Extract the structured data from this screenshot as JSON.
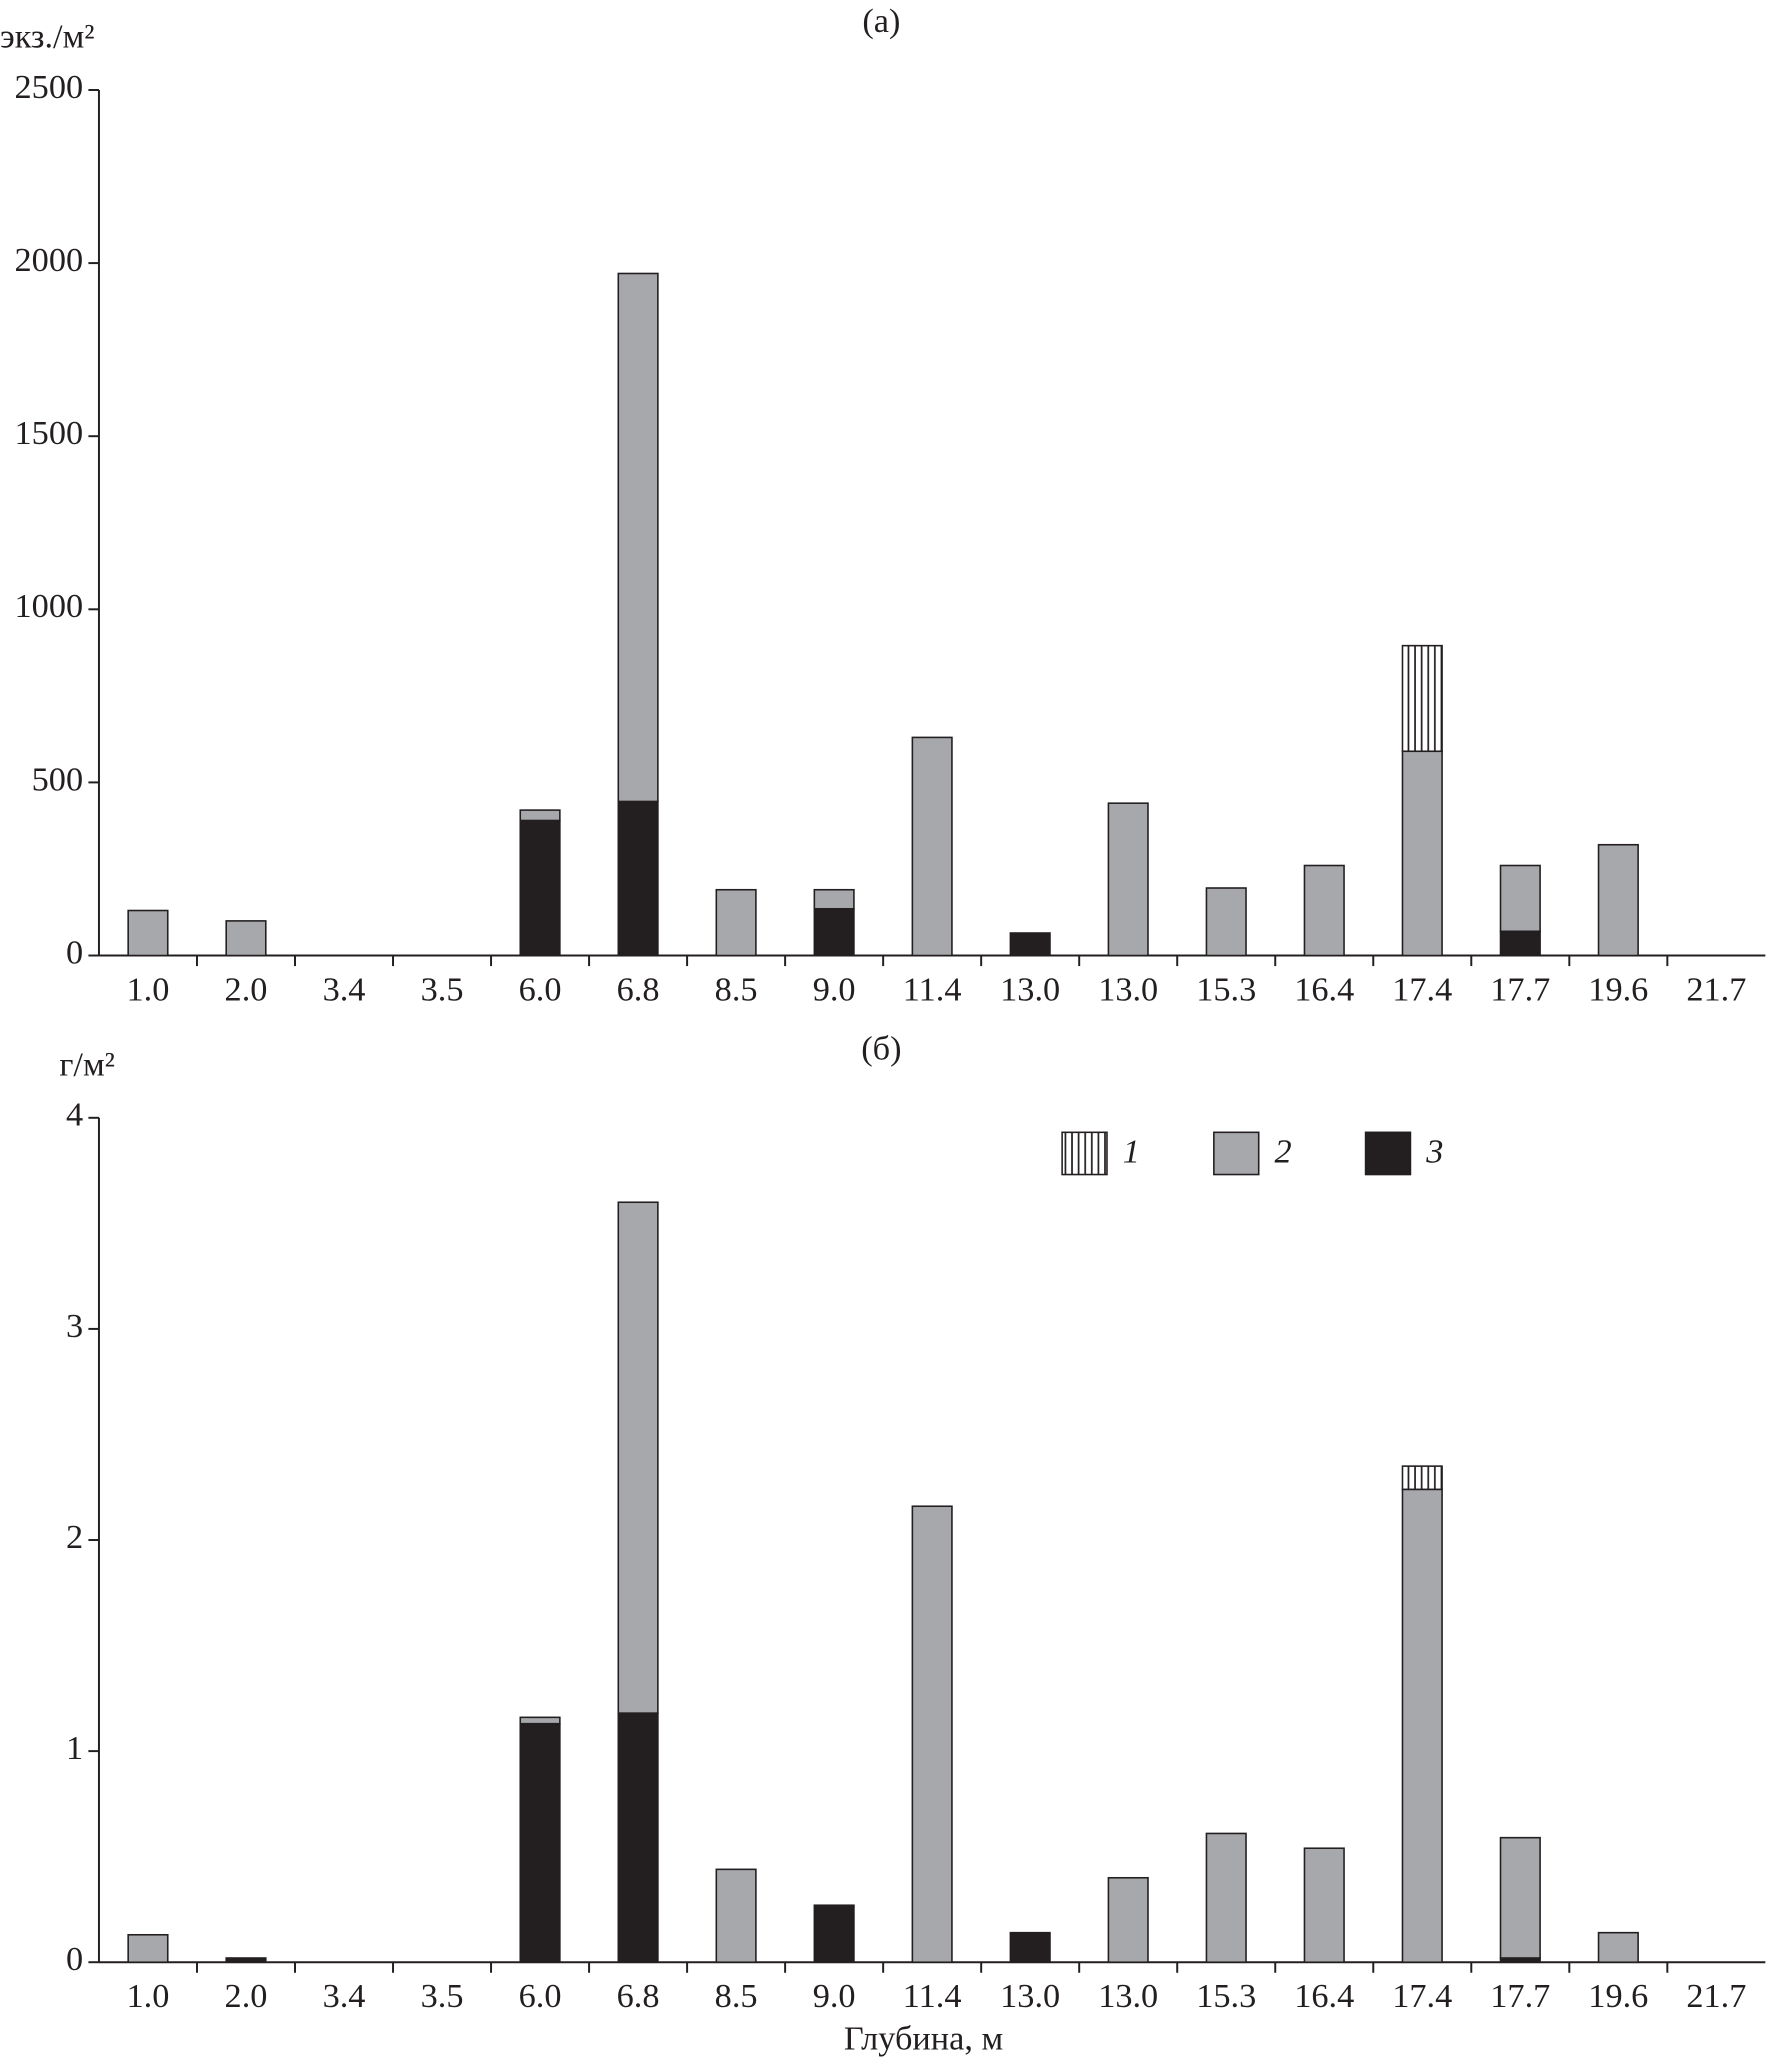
{
  "chart_data": [
    {
      "type": "bar",
      "title": "(а)",
      "y_label": "экз./м²",
      "categories": [
        "1.0",
        "2.0",
        "3.4",
        "3.5",
        "6.0",
        "6.8",
        "8.5",
        "9.0",
        "11.4",
        "13.0",
        "13.0",
        "15.3",
        "16.4",
        "17.4",
        "17.7",
        "19.6",
        "21.7"
      ],
      "series": [
        {
          "color": "#231f20",
          "hatch": true,
          "values": [
            0,
            0,
            0,
            0,
            0,
            0,
            0,
            0,
            0,
            0,
            0,
            0,
            0,
            305,
            0,
            0,
            0
          ]
        },
        {
          "color": "#a7a8ab",
          "values": [
            130,
            100,
            0,
            0,
            30,
            1525,
            190,
            55,
            630,
            0,
            440,
            195,
            260,
            590,
            190,
            320,
            0
          ]
        },
        {
          "color": "#231f20",
          "values": [
            0,
            0,
            0,
            0,
            390,
            445,
            0,
            135,
            0,
            65,
            0,
            0,
            0,
            0,
            70,
            0,
            0
          ]
        }
      ],
      "stacked": true,
      "ylim": [
        0,
        2500
      ],
      "yticks": [
        0,
        500,
        1000,
        1500,
        2000,
        2500
      ]
    },
    {
      "type": "bar",
      "title": "(б)",
      "y_label": "г/м²",
      "x_label": "Глубина, м",
      "categories": [
        "1.0",
        "2.0",
        "3.4",
        "3.5",
        "6.0",
        "6.8",
        "8.5",
        "9.0",
        "11.4",
        "13.0",
        "13.0",
        "15.3",
        "16.4",
        "17.4",
        "17.7",
        "19.6",
        "21.7"
      ],
      "series": [
        {
          "name": "1",
          "color": "#231f20",
          "hatch": true,
          "values": [
            0,
            0,
            0,
            0,
            0,
            0,
            0,
            0,
            0,
            0,
            0,
            0,
            0,
            0.11,
            0,
            0,
            0
          ]
        },
        {
          "name": "2",
          "color": "#a7a8ab",
          "values": [
            0.13,
            0,
            0,
            0,
            0.03,
            2.42,
            0.44,
            0,
            2.16,
            0,
            0.4,
            0.61,
            0.54,
            2.24,
            0.57,
            0.14,
            0
          ]
        },
        {
          "name": "3",
          "color": "#231f20",
          "values": [
            0,
            0.02,
            0,
            0,
            1.13,
            1.18,
            0,
            0.27,
            0,
            0.14,
            0,
            0,
            0,
            0,
            0.02,
            0,
            0
          ]
        }
      ],
      "stacked": true,
      "ylim": [
        0,
        4
      ],
      "yticks": [
        0,
        1,
        2,
        3,
        4
      ],
      "legend": "top-right"
    }
  ]
}
